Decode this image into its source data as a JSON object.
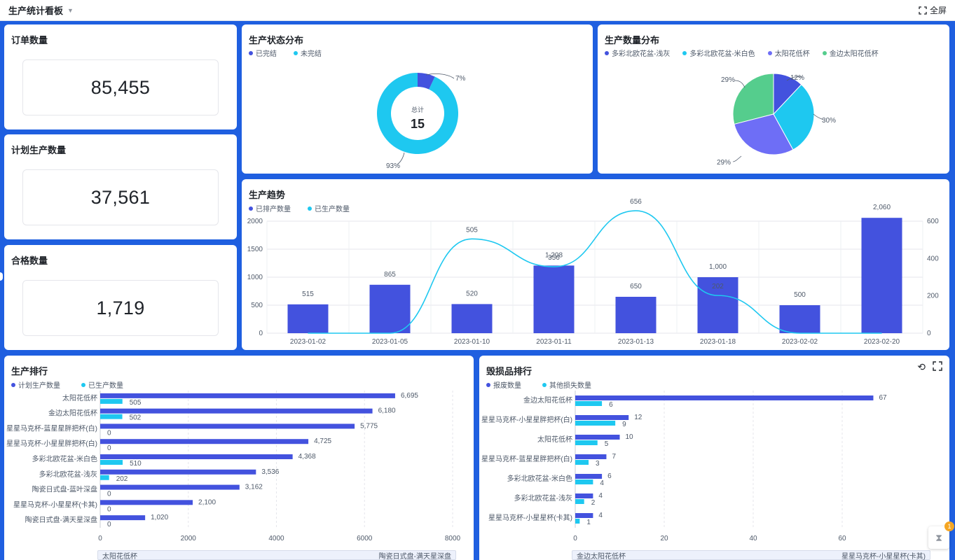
{
  "header": {
    "title": "生产统计看板",
    "fullscreen_label": "全屏"
  },
  "kpis": [
    {
      "title": "订单数量",
      "value": "85,455"
    },
    {
      "title": "计划生产数量",
      "value": "37,561"
    },
    {
      "title": "合格数量",
      "value": "1,719"
    }
  ],
  "status": {
    "title": "生产状态分布",
    "legend": [
      "已完结",
      "未完结"
    ],
    "center_label": "总计",
    "center_value": "15",
    "labels": [
      "7%",
      "93%"
    ]
  },
  "quantity": {
    "title": "生产数量分布",
    "legend": [
      "多彩北欧花盆-浅灰",
      "多彩北欧花盆-米白色",
      "太阳花低杯",
      "金边太阳花低杯"
    ],
    "labels": [
      "12%",
      "30%",
      "29%",
      "29%"
    ]
  },
  "trend": {
    "title": "生产趋势",
    "legend": [
      "已排产数量",
      "已生产数量"
    ]
  },
  "ranking": {
    "title": "生产排行",
    "legend": [
      "计划生产数量",
      "已生产数量"
    ],
    "scroll_left": "太阳花低杯",
    "scroll_right": "陶瓷日式盘-满天星深盘"
  },
  "damage": {
    "title": "毁损品排行",
    "legend": [
      "报废数量",
      "其他损失数量"
    ],
    "scroll_left": "金边太阳花低杯",
    "scroll_right": "星星马克杯-小星星杯(卡其)"
  },
  "float_badge": "1",
  "colors": {
    "primary": "#4352de",
    "secondary": "#1ec8f0",
    "green": "#55cd8d",
    "violet": "#6e6ef6",
    "background": "#1f5fe0"
  },
  "chart_data": [
    {
      "type": "pie",
      "title": "生产状态分布",
      "categories": [
        "已完结",
        "未完结"
      ],
      "values": [
        7,
        93
      ],
      "center_text": "总计 15"
    },
    {
      "type": "pie",
      "title": "生产数量分布",
      "categories": [
        "多彩北欧花盆-浅灰",
        "多彩北欧花盆-米白色",
        "太阳花低杯",
        "金边太阳花低杯"
      ],
      "values": [
        12,
        30,
        29,
        29
      ]
    },
    {
      "type": "bar",
      "title": "生产趋势",
      "categories": [
        "2023-01-02",
        "2023-01-05",
        "2023-01-10",
        "2023-01-11",
        "2023-01-13",
        "2023-01-18",
        "2023-02-02",
        "2023-02-20"
      ],
      "series": [
        {
          "name": "已排产数量",
          "type": "bar",
          "axis": "left",
          "values": [
            515,
            865,
            520,
            1208,
            650,
            1000,
            500,
            2060
          ],
          "labels": [
            "515",
            "865",
            "520",
            "1,208",
            "650",
            "1,000",
            "500",
            "2,060"
          ]
        },
        {
          "name": "已生产数量",
          "type": "line",
          "axis": "right",
          "values": [
            0,
            0,
            505,
            356,
            656,
            202,
            0,
            0
          ],
          "labels": [
            "",
            "",
            "505",
            "356",
            "656",
            "202",
            "",
            ""
          ]
        }
      ],
      "ylim": [
        0,
        2000
      ],
      "y_ticks": [
        "0",
        "500",
        "1000",
        "1500",
        "2000"
      ],
      "y2lim": [
        0,
        600
      ],
      "y2_ticks": [
        "0",
        "200",
        "400",
        "600"
      ],
      "grid": true
    },
    {
      "type": "bar",
      "orientation": "horizontal",
      "title": "生产排行",
      "categories": [
        "太阳花低杯",
        "金边太阳花低杯",
        "星星马克杯-蓝星星胖把杯(白)",
        "星星马克杯-小星星胖把杯(白)",
        "多彩北欧花盆-米白色",
        "多彩北欧花盆-浅灰",
        "陶瓷日式盘-蓝叶深盘",
        "星星马克杯-小星星杯(卡其)",
        "陶瓷日式盘-满天星深盘"
      ],
      "series": [
        {
          "name": "计划生产数量",
          "values": [
            6695,
            6180,
            5775,
            4725,
            4368,
            3536,
            3162,
            2100,
            1020
          ],
          "labels": [
            "6,695",
            "6,180",
            "5,775",
            "4,725",
            "4,368",
            "3,536",
            "3,162",
            "2,100",
            "1,020"
          ]
        },
        {
          "name": "已生产数量",
          "values": [
            505,
            502,
            0,
            0,
            510,
            202,
            0,
            0,
            0
          ],
          "labels": [
            "505",
            "502",
            "0",
            "0",
            "510",
            "202",
            "0",
            "0",
            "0"
          ]
        }
      ],
      "xlim": [
        0,
        8000
      ],
      "x_ticks": [
        "0",
        "2000",
        "4000",
        "6000",
        "8000"
      ]
    },
    {
      "type": "bar",
      "orientation": "horizontal",
      "title": "毁损品排行",
      "categories": [
        "金边太阳花低杯",
        "星星马克杯-小星星胖把杯(白)",
        "太阳花低杯",
        "星星马克杯-蓝星星胖把杯(白)",
        "多彩北欧花盆-米白色",
        "多彩北欧花盆-浅灰",
        "星星马克杯-小星星杯(卡其)"
      ],
      "series": [
        {
          "name": "报废数量",
          "values": [
            67,
            12,
            10,
            7,
            6,
            4,
            4
          ],
          "labels": [
            "67",
            "12",
            "10",
            "7",
            "6",
            "4",
            "4"
          ]
        },
        {
          "name": "其他损失数量",
          "values": [
            6,
            9,
            5,
            3,
            4,
            2,
            1
          ],
          "labels": [
            "6",
            "9",
            "5",
            "3",
            "4",
            "2",
            "1"
          ]
        }
      ],
      "xlim": [
        0,
        80
      ],
      "x_ticks": [
        "0",
        "20",
        "40",
        "60"
      ]
    }
  ]
}
